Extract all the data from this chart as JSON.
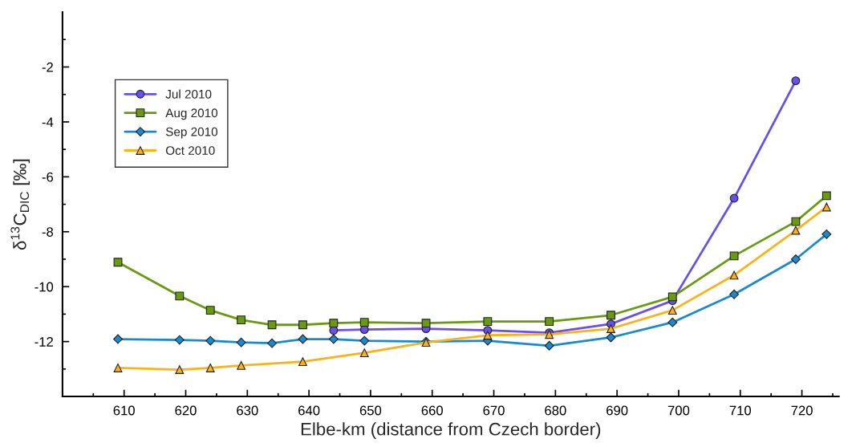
{
  "chart_data": {
    "type": "line",
    "xlabel": "Elbe-km (distance from Czech border)",
    "ylabel": "δ$^{13}$C$_{DIC}$ [‰]",
    "xlim": [
      600,
      726
    ],
    "ylim": [
      -14,
      0
    ],
    "xticks": [
      {
        "value": 605,
        "label": null
      },
      610,
      {
        "value": 615,
        "label": null
      },
      620,
      {
        "value": 625,
        "label": null
      },
      630,
      {
        "value": 635,
        "label": null
      },
      640,
      {
        "value": 645,
        "label": null
      },
      650,
      {
        "value": 655,
        "label": null
      },
      660,
      {
        "value": 665,
        "label": null
      },
      670,
      {
        "value": 675,
        "label": null
      },
      680,
      {
        "value": 685,
        "label": null
      },
      690,
      {
        "value": 695,
        "label": null
      },
      700,
      {
        "value": 705,
        "label": null
      },
      710,
      {
        "value": 715,
        "label": null
      },
      720,
      {
        "value": 725,
        "label": null
      }
    ],
    "yticks": [
      {
        "value": -14,
        "label": null
      },
      {
        "value": -13,
        "label": null
      },
      -12,
      {
        "value": -11,
        "label": null
      },
      -10,
      {
        "value": -9,
        "label": null
      },
      -8,
      {
        "value": -7,
        "label": null
      },
      -6,
      {
        "value": -5,
        "label": null
      },
      -4,
      {
        "value": -3,
        "label": null
      },
      -2,
      {
        "value": -1,
        "label": null
      }
    ],
    "grid": false,
    "legend": "top left",
    "line_style": "solid",
    "series": [
      {
        "name": "Jul 2010",
        "color": "#6a4fe8",
        "marker": "circle",
        "x": [
          644,
          649,
          659,
          669,
          679,
          689,
          699,
          709,
          719
        ],
        "values": [
          -11.59,
          -11.56,
          -11.53,
          -11.59,
          -11.68,
          -11.36,
          -10.51,
          -6.78,
          -2.5
        ]
      },
      {
        "name": "Aug 2010",
        "color": "#6a9a12",
        "marker": "square",
        "x": [
          609,
          619,
          624,
          629,
          634,
          639,
          644,
          649,
          659,
          669,
          679,
          689,
          699,
          709,
          719,
          724
        ],
        "values": [
          -9.11,
          -10.34,
          -10.86,
          -11.21,
          -11.39,
          -11.39,
          -11.33,
          -11.3,
          -11.33,
          -11.27,
          -11.27,
          -11.04,
          -10.37,
          -8.88,
          -7.63,
          -6.69
        ]
      },
      {
        "name": "Sep 2010",
        "color": "#1a8ad0",
        "marker": "diamond",
        "x": [
          609,
          619,
          624,
          629,
          634,
          639,
          644,
          649,
          659,
          669,
          679,
          689,
          699,
          709,
          719,
          724
        ],
        "values": [
          -11.91,
          -11.94,
          -11.97,
          -12.03,
          -12.06,
          -11.91,
          -11.91,
          -11.97,
          -12.0,
          -11.97,
          -12.15,
          -11.85,
          -11.3,
          -10.28,
          -9.0,
          -8.09
        ]
      },
      {
        "name": "Oct 2010",
        "color": "#fbb21a",
        "marker": "triangle",
        "x": [
          609,
          619,
          624,
          629,
          639,
          649,
          659,
          669,
          679,
          689,
          699,
          709,
          719,
          724
        ],
        "values": [
          -12.96,
          -13.02,
          -12.96,
          -12.87,
          -12.73,
          -12.41,
          -12.03,
          -11.77,
          -11.74,
          -11.53,
          -10.86,
          -9.58,
          -7.95,
          -7.1
        ]
      }
    ]
  }
}
